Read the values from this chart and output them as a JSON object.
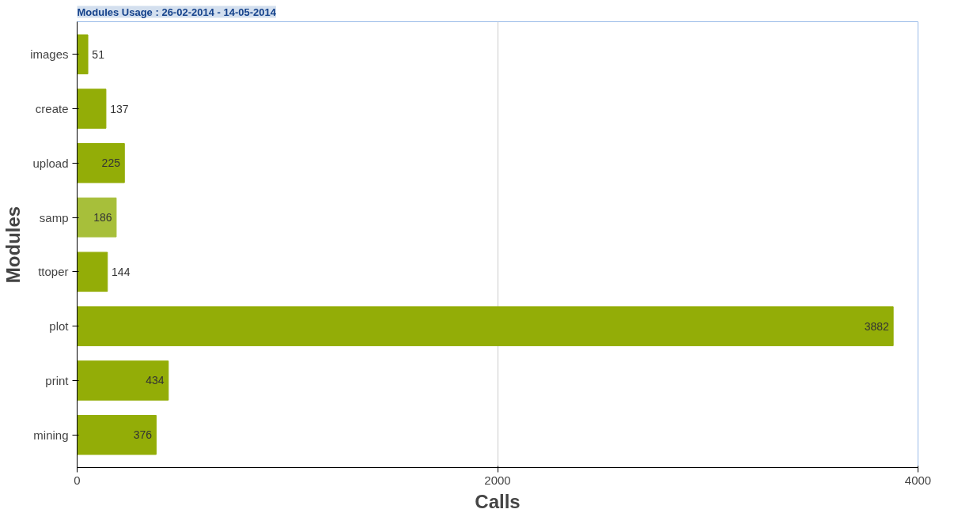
{
  "chart_data": {
    "type": "bar",
    "orientation": "horizontal",
    "title": "Modules Usage : 26-02-2014 - 14-05-2014",
    "xlabel": "Calls",
    "ylabel": "Modules",
    "categories": [
      "images",
      "create",
      "upload",
      "samp",
      "ttoper",
      "plot",
      "print",
      "mining"
    ],
    "values": [
      51,
      137,
      225,
      186,
      144,
      3882,
      434,
      376
    ],
    "colors": [
      "#93ad07",
      "#93ad07",
      "#93ad07",
      "#a7bf3a",
      "#93ad07",
      "#93ad07",
      "#93ad07",
      "#93ad07"
    ],
    "xlim": [
      0,
      4000
    ],
    "xticks": [
      0,
      2000,
      4000
    ],
    "grid": "x",
    "data_labels": true
  }
}
